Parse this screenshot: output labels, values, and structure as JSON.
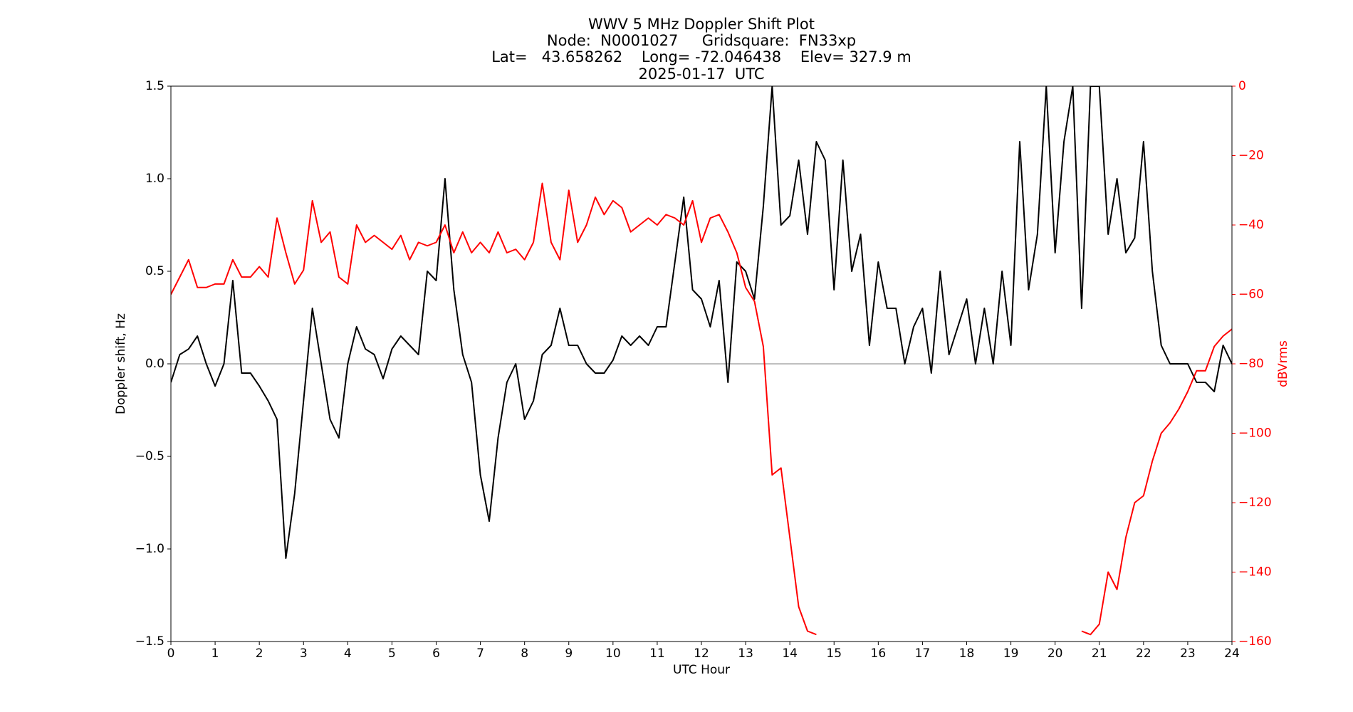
{
  "chart_data": {
    "type": "line",
    "title": [
      "WWV 5 MHz Doppler Shift Plot",
      "Node:  N0001027     Gridsquare:  FN33xp",
      "Lat=   43.658262    Long= -72.046438    Elev= 327.9 m",
      "2025-01-17  UTC"
    ],
    "xlabel": "UTC Hour",
    "ylabel": "Doppler shift, Hz",
    "y2label": "dBVrms",
    "y2color": "#ff0000",
    "hline": 0,
    "hline_color": "#999999",
    "xlim": [
      0,
      24
    ],
    "xticks": [
      0,
      1,
      2,
      3,
      4,
      5,
      6,
      7,
      8,
      9,
      10,
      11,
      12,
      13,
      14,
      15,
      16,
      17,
      18,
      19,
      20,
      21,
      22,
      23,
      24
    ],
    "ylim": [
      -1.5,
      1.5
    ],
    "yticks": [
      {
        "value": -1.5,
        "label": "−1.5"
      },
      {
        "value": -1.0,
        "label": "−1.0"
      },
      {
        "value": -0.5,
        "label": "−0.5"
      },
      {
        "value": 0,
        "label": "0.0"
      },
      {
        "value": 0.5,
        "label": "0.5"
      },
      {
        "value": 1.0,
        "label": "1.0"
      },
      {
        "value": 1.5,
        "label": "1.5"
      }
    ],
    "y2lim": [
      -160,
      0
    ],
    "y2ticks": [
      0,
      {
        "value": -20,
        "label": "−20"
      },
      {
        "value": -40,
        "label": "−40"
      },
      {
        "value": -60,
        "label": "−60"
      },
      {
        "value": -80,
        "label": "−80"
      },
      {
        "value": -100,
        "label": "−100"
      },
      {
        "value": -120,
        "label": "−120"
      },
      {
        "value": -140,
        "label": "−140"
      },
      {
        "value": -160,
        "label": "−160"
      }
    ],
    "x": [
      0,
      0.2,
      0.4,
      0.6,
      0.8,
      1,
      1.2,
      1.4,
      1.6,
      1.8,
      2,
      2.2,
      2.4,
      2.6,
      2.8,
      3,
      3.2,
      3.4,
      3.6,
      3.8,
      4,
      4.2,
      4.4,
      4.6,
      4.8,
      5,
      5.2,
      5.4,
      5.6,
      5.8,
      6,
      6.2,
      6.4,
      6.6,
      6.8,
      7,
      7.2,
      7.4,
      7.6,
      7.8,
      8,
      8.2,
      8.4,
      8.6,
      8.8,
      9,
      9.2,
      9.4,
      9.6,
      9.8,
      10,
      10.2,
      10.4,
      10.6,
      10.8,
      11,
      11.2,
      11.4,
      11.6,
      11.8,
      12,
      12.2,
      12.4,
      12.6,
      12.8,
      13,
      13.2,
      13.4,
      13.6,
      13.8,
      14,
      14.2,
      14.4,
      14.6,
      14.8,
      15,
      15.2,
      15.4,
      15.6,
      15.8,
      16,
      16.2,
      16.4,
      16.6,
      16.8,
      17,
      17.2,
      17.4,
      17.6,
      17.8,
      18,
      18.2,
      18.4,
      18.6,
      18.8,
      19,
      19.2,
      19.4,
      19.6,
      19.8,
      20,
      20.2,
      20.4,
      20.6,
      20.8,
      21,
      21.2,
      21.4,
      21.6,
      21.8,
      22,
      22.2,
      22.4,
      22.6,
      22.8,
      23,
      23.2,
      23.4,
      23.6,
      23.8,
      24
    ],
    "series": [
      {
        "name": "Doppler shift",
        "color": "#000000",
        "axis": "y",
        "values": [
          -0.1,
          0.05,
          0.08,
          0.15,
          0.0,
          -0.12,
          0.0,
          0.45,
          -0.05,
          -0.05,
          -0.12,
          -0.2,
          -0.3,
          -1.05,
          -0.7,
          -0.2,
          0.3,
          0.0,
          -0.3,
          -0.4,
          0.0,
          0.2,
          0.08,
          0.05,
          -0.08,
          0.08,
          0.15,
          0.1,
          0.05,
          0.5,
          0.45,
          1.0,
          0.4,
          0.05,
          -0.1,
          -0.6,
          -0.85,
          -0.4,
          -0.1,
          0.0,
          -0.3,
          -0.2,
          0.05,
          0.1,
          0.3,
          0.1,
          0.1,
          0.0,
          -0.05,
          -0.05,
          0.02,
          0.15,
          0.1,
          0.15,
          0.1,
          0.2,
          0.2,
          0.55,
          0.9,
          0.4,
          0.35,
          0.2,
          0.45,
          -0.1,
          0.55,
          0.5,
          0.35,
          0.85,
          1.5,
          0.75,
          0.8,
          1.1,
          0.7,
          1.2,
          1.1,
          0.4,
          1.1,
          0.5,
          0.7,
          0.1,
          0.55,
          0.3,
          0.3,
          0.0,
          0.2,
          0.3,
          -0.05,
          0.5,
          0.05,
          0.2,
          0.35,
          0.0,
          0.3,
          0.0,
          0.5,
          0.1,
          1.2,
          0.4,
          0.7,
          1.5,
          0.6,
          1.2,
          1.5,
          0.3,
          1.5,
          1.5,
          0.7,
          1.0,
          0.6,
          0.68,
          1.2,
          0.5,
          0.1,
          0.0,
          0.0,
          0.0,
          -0.1,
          -0.1,
          -0.15,
          0.1,
          0.0
        ]
      },
      {
        "name": "dBVrms",
        "color": "#ff0000",
        "axis": "y2",
        "values": [
          -60,
          -55,
          -50,
          -58,
          -58,
          -57,
          -57,
          -50,
          -55,
          -55,
          -52,
          -55,
          -38,
          -48,
          -57,
          -53,
          -33,
          -45,
          -42,
          -55,
          -57,
          -40,
          -45,
          -43,
          -45,
          -47,
          -43,
          -50,
          -45,
          -46,
          -45,
          -40,
          -48,
          -42,
          -48,
          -45,
          -48,
          -42,
          -48,
          -47,
          -50,
          -45,
          -28,
          -45,
          -50,
          -30,
          -45,
          -40,
          -32,
          -37,
          -33,
          -35,
          -42,
          -40,
          -38,
          -40,
          -37,
          -38,
          -40,
          -33,
          -45,
          -38,
          -37,
          -42,
          -48,
          -58,
          -62,
          -75,
          -112,
          -110,
          -130,
          -150,
          -157,
          -158,
          null,
          null,
          null,
          null,
          null,
          null,
          null,
          null,
          null,
          null,
          null,
          null,
          null,
          null,
          null,
          null,
          null,
          null,
          null,
          null,
          null,
          null,
          null,
          null,
          null,
          null,
          null,
          null,
          null,
          -157,
          -158,
          -155,
          -140,
          -145,
          -130,
          -120,
          -118,
          -108,
          -100,
          -97,
          -93,
          -88,
          -82,
          -82,
          -75,
          -72,
          -70
        ]
      }
    ]
  }
}
